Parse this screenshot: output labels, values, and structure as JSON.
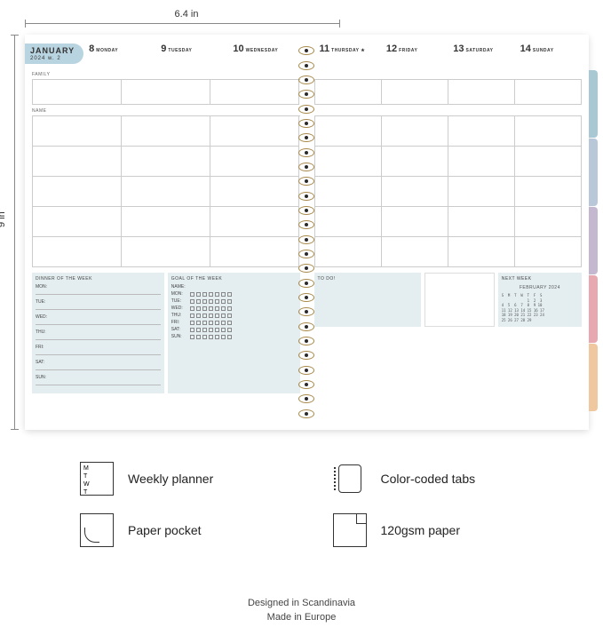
{
  "dimensions": {
    "width": "6.4 in",
    "height": "9 in"
  },
  "month": "JANUARY",
  "week_sub": "2024 w. 2",
  "days_left": [
    {
      "num": "8",
      "name": "MONDAY"
    },
    {
      "num": "9",
      "name": "TUESDAY"
    },
    {
      "num": "10",
      "name": "WEDNESDAY"
    }
  ],
  "days_right": [
    {
      "num": "11",
      "name": "THURSDAY ★"
    },
    {
      "num": "12",
      "name": "FRIDAY"
    },
    {
      "num": "13",
      "name": "SATURDAY"
    },
    {
      "num": "14",
      "name": "SUNDAY"
    }
  ],
  "labels": {
    "family": "FAMILY",
    "name": "NAME",
    "dinner": "DINNER OF THE WEEK",
    "goal": "GOAL OF THE WEEK",
    "todo": "TO DO!",
    "next": "NEXT WEEK"
  },
  "daynames": [
    "MON:",
    "TUE:",
    "WED:",
    "THU:",
    "FRI:",
    "SAT:",
    "SUN:"
  ],
  "goal_rows": [
    "NAME:",
    "MON:",
    "TUE:",
    "WED:",
    "THU:",
    "FRI:",
    "SAT:",
    "SUN:"
  ],
  "cal": {
    "title": "FEBRUARY 2024",
    "rows": [
      "S  M  T  W  T  F  S",
      "            1  2  3",
      "4  5  6  7  8  9 10",
      "11 12 13 14 15 16 17",
      "18 19 20 21 22 23 24",
      "25 26 27 28 29"
    ]
  },
  "tab_colors": [
    "#a8c8d4",
    "#b8c8d8",
    "#c4b8d0",
    "#e8a8b0",
    "#f0c8a0"
  ],
  "features": [
    {
      "label": "Weekly planner",
      "icon": "planner"
    },
    {
      "label": "Color-coded tabs",
      "icon": "tabs"
    },
    {
      "label": "Paper pocket",
      "icon": "pocket"
    },
    {
      "label": "120gsm paper",
      "icon": "paper"
    }
  ],
  "footer": [
    "Designed in Scandinavia",
    "Made in Europe"
  ],
  "colors": {
    "badge": "#b8d4e0",
    "box_bg": "#e4eef1",
    "spiral": "#a8894a"
  }
}
